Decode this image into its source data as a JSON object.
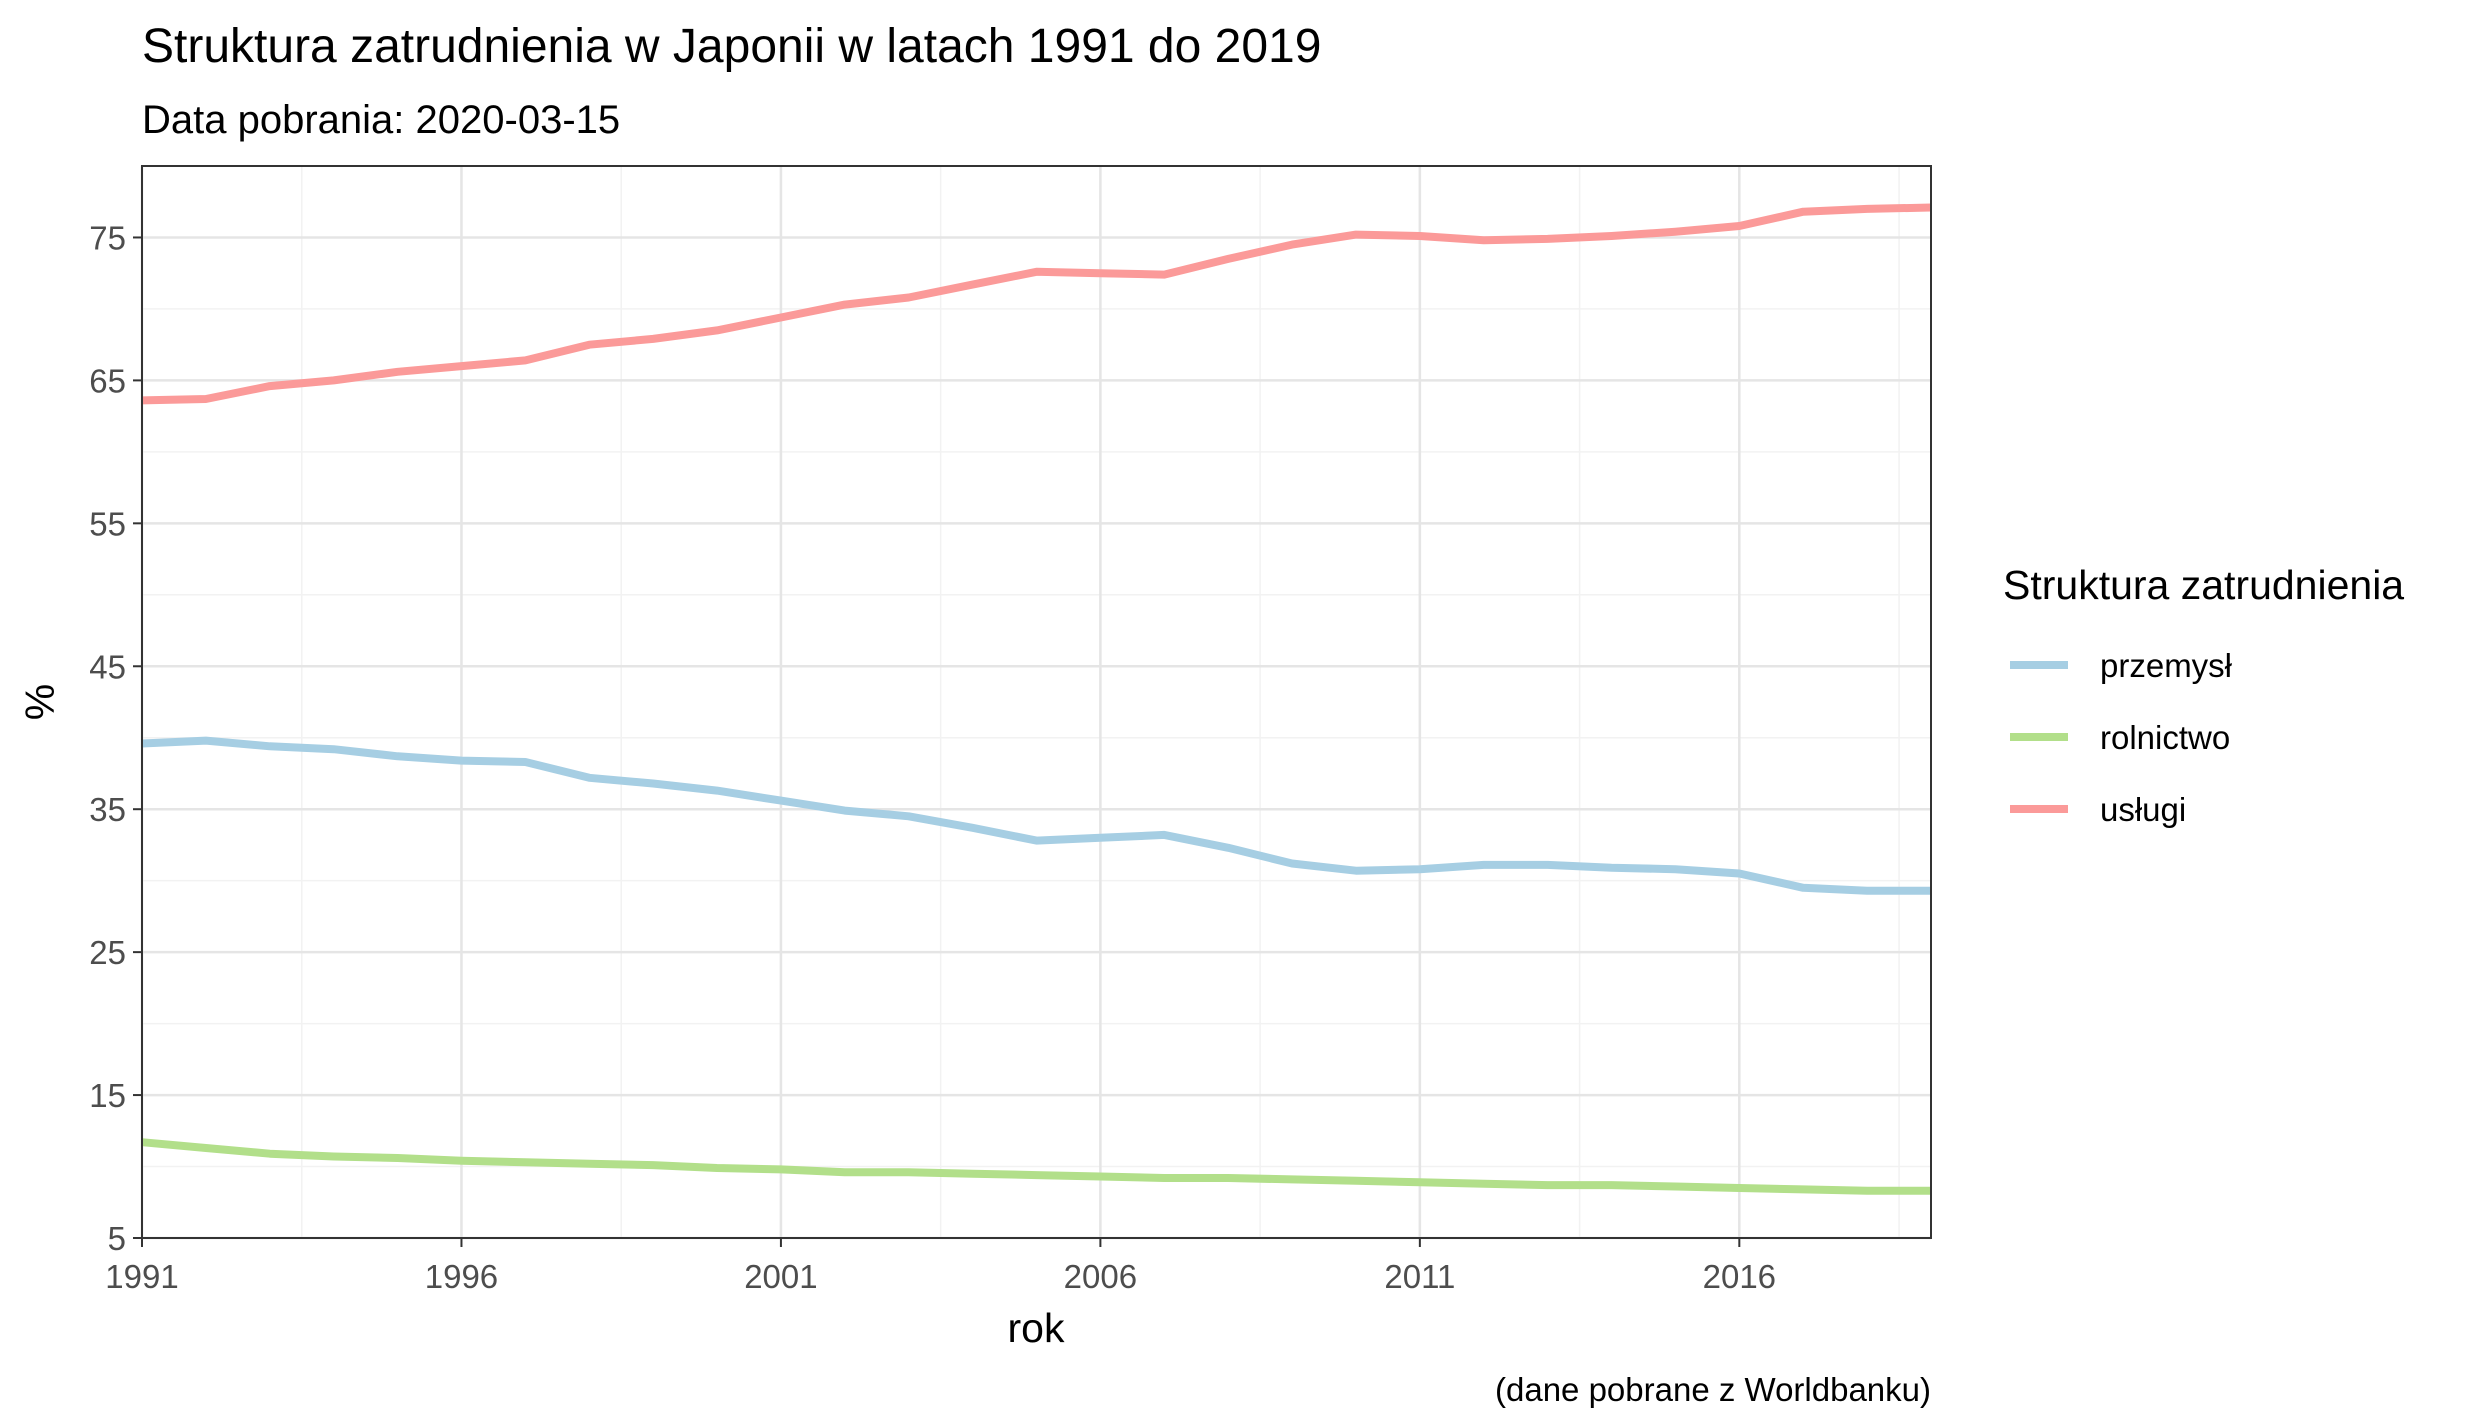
{
  "chart_data": {
    "type": "line",
    "title": "Struktura zatrudnienia w Japonii w latach 1991 do  2019",
    "subtitle": "Data pobrania: 2020-03-15",
    "caption": "(dane pobrane z Worldbanku)",
    "xlabel": "rok",
    "ylabel": "%",
    "xlim": [
      1991,
      2019
    ],
    "ylim": [
      5,
      80
    ],
    "x_ticks": [
      1991,
      1996,
      2001,
      2006,
      2011,
      2016
    ],
    "y_ticks": [
      5,
      15,
      25,
      35,
      45,
      55,
      65,
      75
    ],
    "grid": true,
    "legend": {
      "title": "Struktura zatrudnienia",
      "position": "right"
    },
    "x": [
      1991,
      1992,
      1993,
      1994,
      1995,
      1996,
      1997,
      1998,
      1999,
      2000,
      2001,
      2002,
      2003,
      2004,
      2005,
      2006,
      2007,
      2008,
      2009,
      2010,
      2011,
      2012,
      2013,
      2014,
      2015,
      2016,
      2017,
      2018,
      2019
    ],
    "series": [
      {
        "name": "przemysł",
        "color": "#a6cee3",
        "values": [
          39.6,
          39.8,
          39.4,
          39.2,
          38.7,
          38.4,
          38.3,
          37.2,
          36.8,
          36.3,
          35.6,
          34.9,
          34.5,
          33.7,
          32.8,
          33.0,
          33.2,
          32.3,
          31.2,
          30.7,
          30.8,
          31.1,
          31.1,
          30.9,
          30.8,
          30.5,
          29.5,
          29.3,
          29.3
        ]
      },
      {
        "name": "rolnictwo",
        "color": "#b2df8a",
        "values": [
          11.7,
          11.3,
          10.9,
          10.7,
          10.6,
          10.4,
          10.3,
          10.2,
          10.1,
          9.9,
          9.8,
          9.6,
          9.6,
          9.5,
          9.4,
          9.3,
          9.2,
          9.2,
          9.1,
          9.0,
          8.9,
          8.8,
          8.7,
          8.7,
          8.6,
          8.5,
          8.4,
          8.3,
          8.3
        ]
      },
      {
        "name": "usługi",
        "color": "#fb9a99",
        "values": [
          63.6,
          63.7,
          64.6,
          65.0,
          65.6,
          66.0,
          66.4,
          67.5,
          67.9,
          68.5,
          69.4,
          70.3,
          70.8,
          71.7,
          72.6,
          72.5,
          72.4,
          73.5,
          74.5,
          75.2,
          75.1,
          74.8,
          74.9,
          75.1,
          75.4,
          75.8,
          76.8,
          77.0,
          77.1
        ]
      }
    ]
  }
}
